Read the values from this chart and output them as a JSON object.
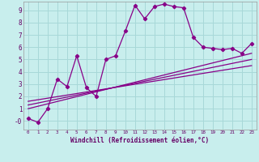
{
  "xlabel": "Windchill (Refroidissement éolien,°C)",
  "background_color": "#c8eeed",
  "grid_color": "#a8d8d8",
  "line_color": "#880088",
  "xlim": [
    -0.5,
    23.5
  ],
  "ylim": [
    -0.7,
    9.7
  ],
  "xticks": [
    0,
    1,
    2,
    3,
    4,
    5,
    6,
    7,
    8,
    9,
    10,
    11,
    12,
    13,
    14,
    15,
    16,
    17,
    18,
    19,
    20,
    21,
    22,
    23
  ],
  "yticks": [
    0,
    1,
    2,
    3,
    4,
    5,
    6,
    7,
    8,
    9
  ],
  "ytick_labels": [
    "-0",
    "1",
    "2",
    "3",
    "4",
    "5",
    "6",
    "7",
    "8",
    "9"
  ],
  "main_line_x": [
    0,
    1,
    2,
    3,
    4,
    5,
    6,
    7,
    8,
    9,
    10,
    11,
    12,
    13,
    14,
    15,
    16,
    17,
    18,
    19,
    20,
    21,
    22,
    23
  ],
  "main_line_y": [
    0.2,
    -0.1,
    1.0,
    3.4,
    2.8,
    5.3,
    2.7,
    2.0,
    5.0,
    5.3,
    7.3,
    9.4,
    8.3,
    9.3,
    9.5,
    9.3,
    9.2,
    6.8,
    6.0,
    5.9,
    5.8,
    5.9,
    5.5,
    6.3
  ],
  "line2_x": [
    0,
    23
  ],
  "line2_y": [
    1.0,
    5.5
  ],
  "line3_x": [
    0,
    23
  ],
  "line3_y": [
    1.3,
    5.0
  ],
  "line4_x": [
    0,
    23
  ],
  "line4_y": [
    1.6,
    4.5
  ]
}
